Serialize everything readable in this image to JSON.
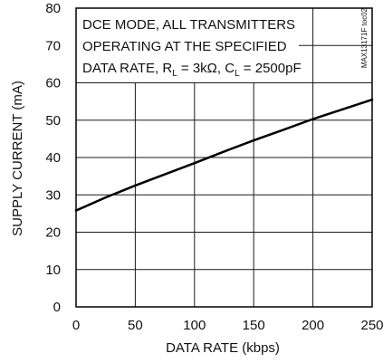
{
  "chart_data": {
    "type": "line",
    "xlabel": "DATA RATE (kbps)",
    "ylabel": "SUPPLY CURRENT (mA)",
    "xlim": [
      0,
      250
    ],
    "ylim": [
      0,
      80
    ],
    "xticks": [
      0,
      50,
      100,
      150,
      200,
      250
    ],
    "yticks": [
      0,
      10,
      20,
      30,
      40,
      50,
      60,
      70,
      80
    ],
    "grid": true,
    "annotation": {
      "line1": "DCE MODE, ALL TRANSMITTERS",
      "line2": "OPERATING AT THE SPECIFIED",
      "line3_prefix": "DATA RATE, R",
      "line3_rl_sub": "L",
      "line3_rl_value": " = 3kΩ, C",
      "line3_cl_sub": "L",
      "line3_cl_value": " = 2500pF"
    },
    "watermark": "MAX13171F toc02",
    "series": [
      {
        "x": [
          0,
          25,
          50,
          75,
          100,
          125,
          150,
          175,
          200,
          225,
          250
        ],
        "y": [
          25.8,
          29.3,
          32.5,
          35.5,
          38.5,
          41.6,
          44.6,
          47.4,
          50.3,
          52.9,
          55.5
        ]
      }
    ],
    "line_color": "#000000",
    "grid_color": "#1a1a1a"
  }
}
